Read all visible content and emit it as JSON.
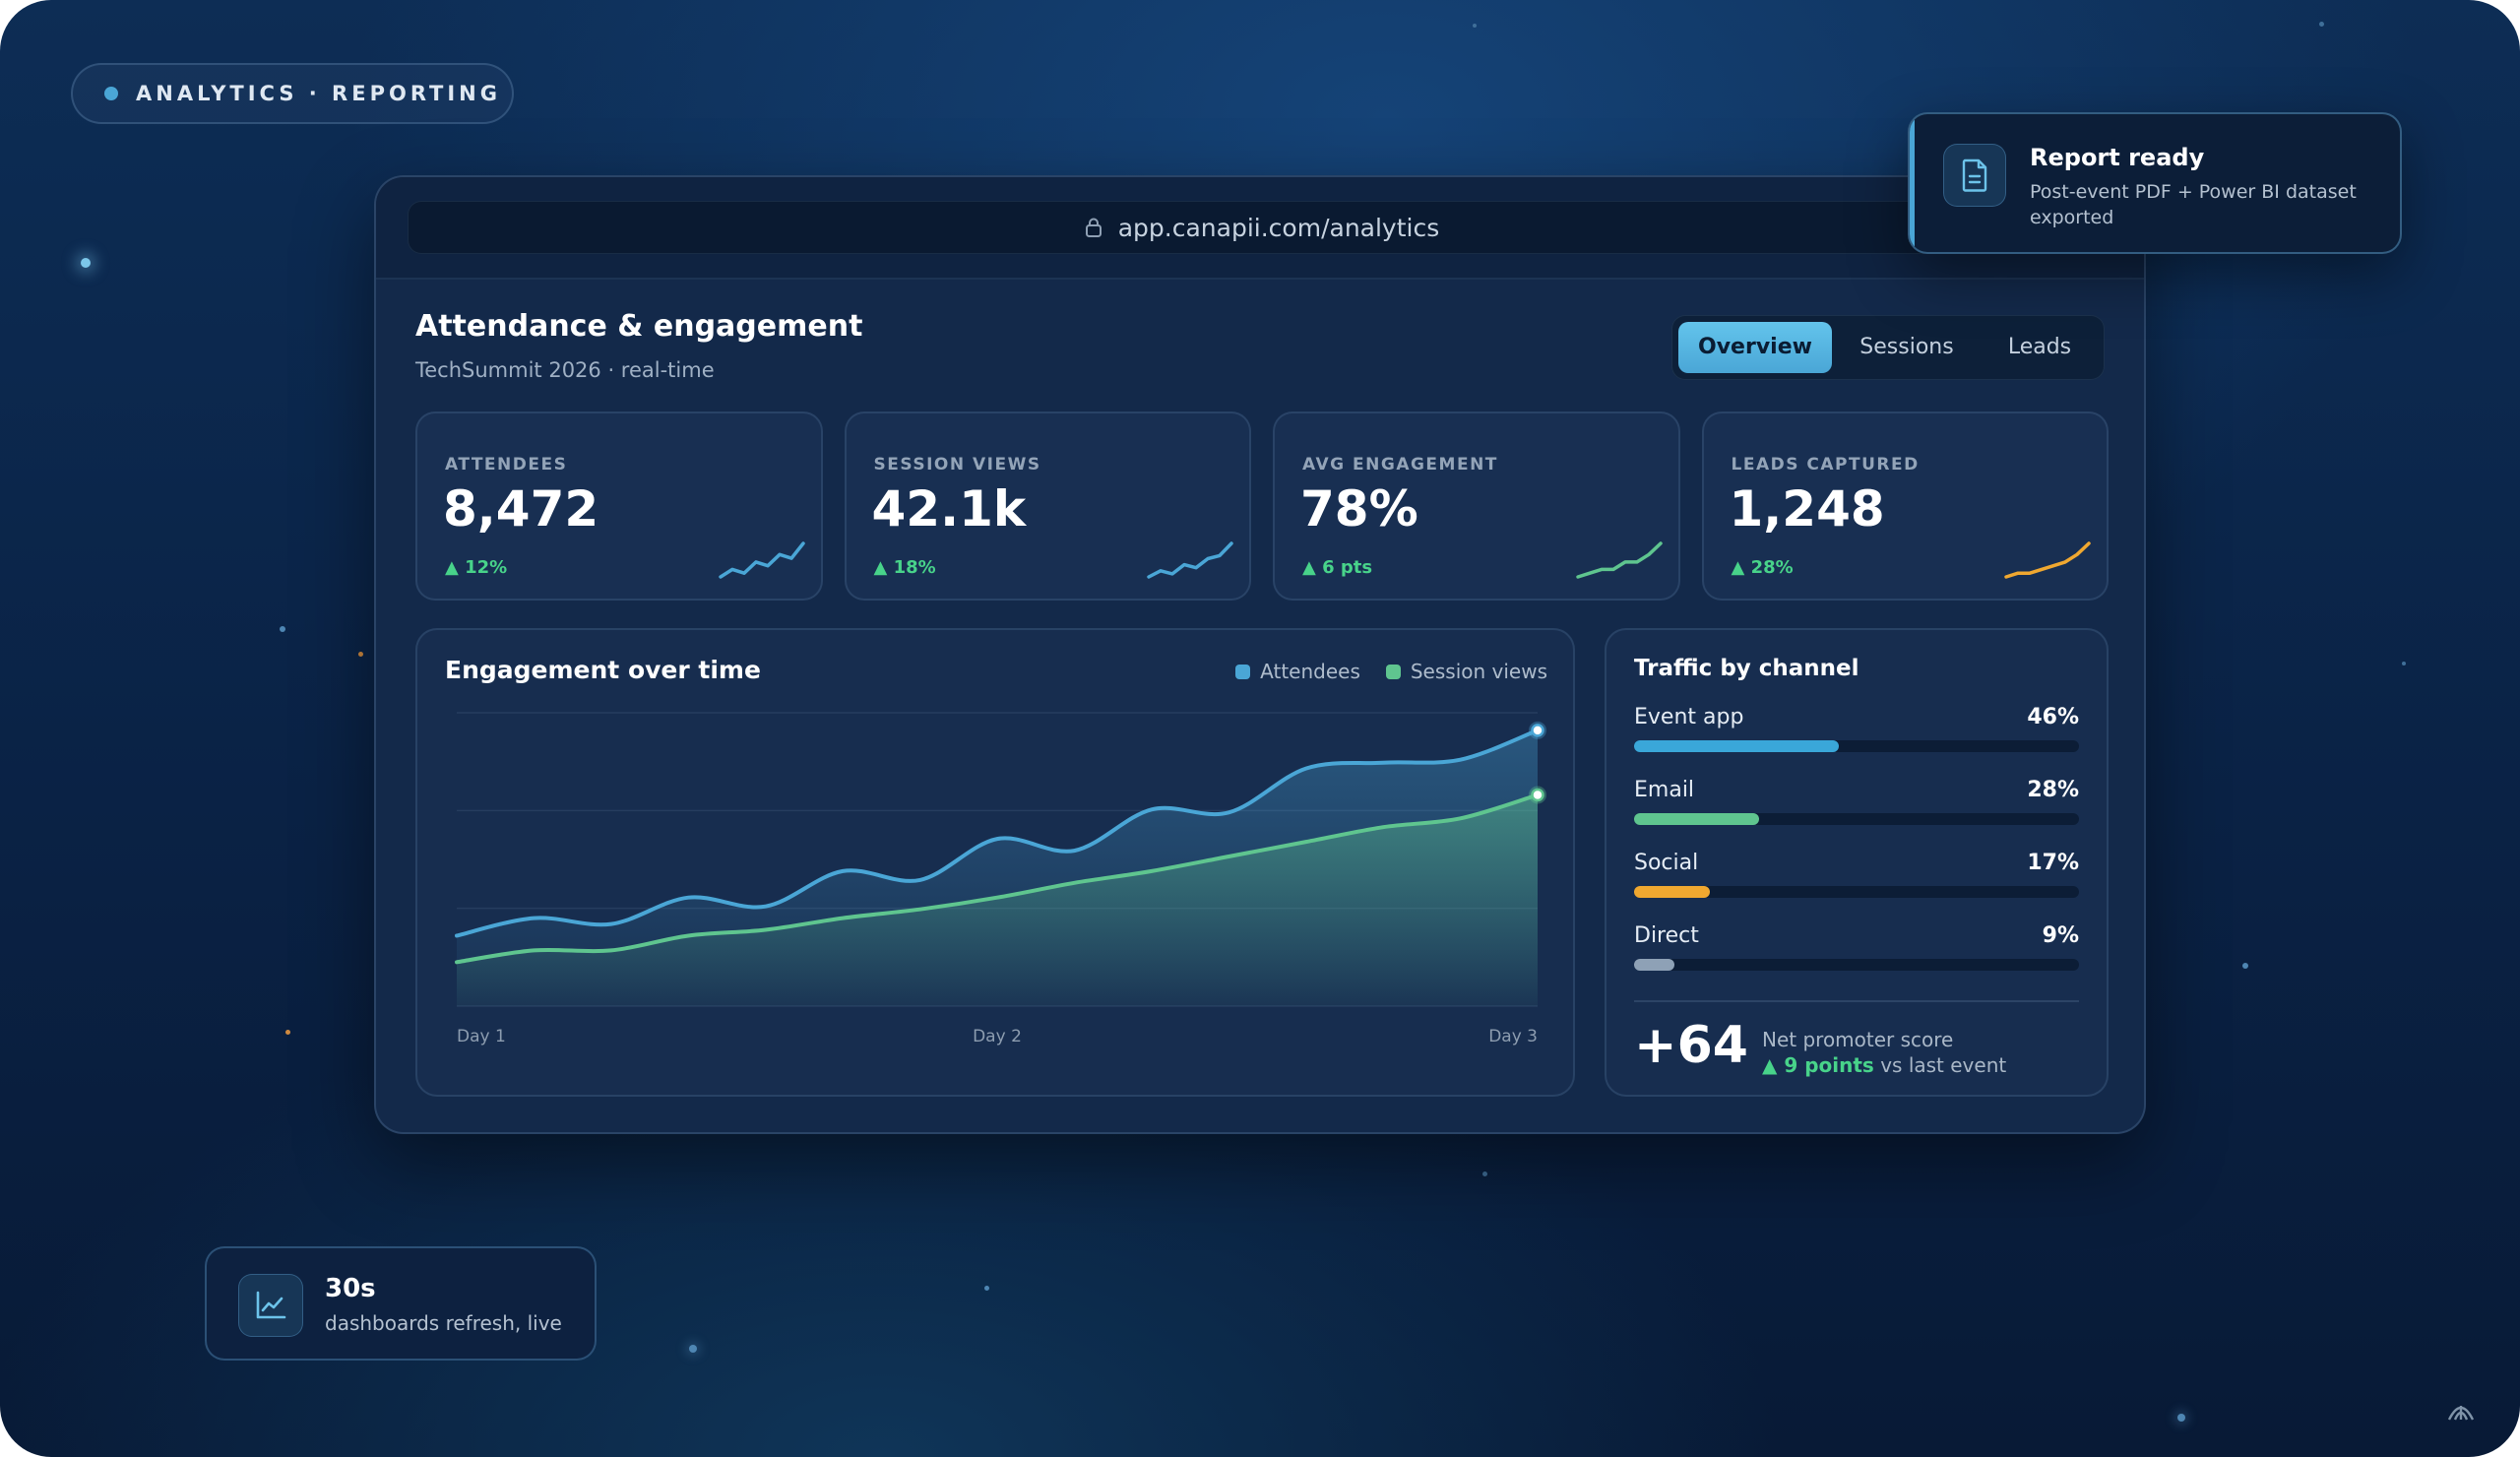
{
  "hero_pill": {
    "text": "ANALYTICS · REPORTING"
  },
  "browser": {
    "url": "app.canapii.com/analytics"
  },
  "header": {
    "title": "Attendance & engagement",
    "subtitle": "TechSummit 2026 · real-time"
  },
  "tabs": [
    {
      "label": "Overview",
      "active": true
    },
    {
      "label": "Sessions",
      "active": false
    },
    {
      "label": "Leads",
      "active": false
    }
  ],
  "kpis": [
    {
      "label": "ATTENDEES",
      "value": "8,472",
      "delta": "▲ 12%",
      "color": "#4aa6d6",
      "trend": [
        3,
        5,
        4,
        7,
        6,
        9,
        8,
        12
      ]
    },
    {
      "label": "SESSION VIEWS",
      "value": "42.1k",
      "delta": "▲ 18%",
      "color": "#4aa6d6",
      "trend": [
        2,
        4,
        3,
        6,
        5,
        8,
        9,
        13
      ]
    },
    {
      "label": "AVG ENGAGEMENT",
      "value": "78%",
      "delta": "▲ 6 pts",
      "color": "#5fc58f",
      "trend": [
        2,
        3,
        4,
        4,
        6,
        6,
        8,
        11
      ]
    },
    {
      "label": "LEADS CAPTURED",
      "value": "1,248",
      "delta": "▲ 28%",
      "color": "#f0a830",
      "trend": [
        2,
        3,
        3,
        4,
        5,
        6,
        8,
        11
      ]
    }
  ],
  "engagement": {
    "title": "Engagement over time",
    "legend": [
      {
        "name": "Attendees",
        "color": "#4aa6d6"
      },
      {
        "name": "Session views",
        "color": "#5fc58f"
      }
    ],
    "xticks": [
      "Day 1",
      "Day 2",
      "Day 3"
    ]
  },
  "chart_data": {
    "type": "area",
    "title": "Engagement over time",
    "xlabel": "",
    "ylabel": "",
    "x_tick_labels": [
      "Day 1",
      "Day 2",
      "Day 3"
    ],
    "y_range": [
      0,
      100
    ],
    "grid": true,
    "legend_position": "top-right",
    "series": [
      {
        "name": "Attendees",
        "color": "#4aa6d6",
        "values": [
          24,
          30,
          28,
          37,
          34,
          46,
          43,
          57,
          53,
          67,
          66,
          81,
          83,
          84,
          94
        ]
      },
      {
        "name": "Session views",
        "color": "#5fc58f",
        "values": [
          15,
          19,
          19,
          24,
          26,
          30,
          33,
          37,
          42,
          46,
          51,
          56,
          61,
          64,
          72
        ]
      }
    ]
  },
  "traffic": {
    "title": "Traffic by channel",
    "channels": [
      {
        "name": "Event app",
        "value": "46%",
        "fraction": 0.46,
        "color": "#3aa7d9"
      },
      {
        "name": "Email",
        "value": "28%",
        "fraction": 0.28,
        "color": "#5fc58f"
      },
      {
        "name": "Social",
        "value": "17%",
        "fraction": 0.17,
        "color": "#f0a830"
      },
      {
        "name": "Direct",
        "value": "9%",
        "fraction": 0.09,
        "color": "#8ea1b6"
      }
    ],
    "nps": {
      "value": "+64",
      "label": "Net promoter score",
      "delta_strong": "▲ 9 points",
      "delta_rest": " vs last event"
    }
  },
  "toast": {
    "title": "Report ready",
    "body": "Post-event PDF + Power BI dataset exported",
    "icon": "document-icon"
  },
  "badge": {
    "title": "30s",
    "body": "dashboards refresh, live",
    "icon": "line-chart-icon"
  }
}
